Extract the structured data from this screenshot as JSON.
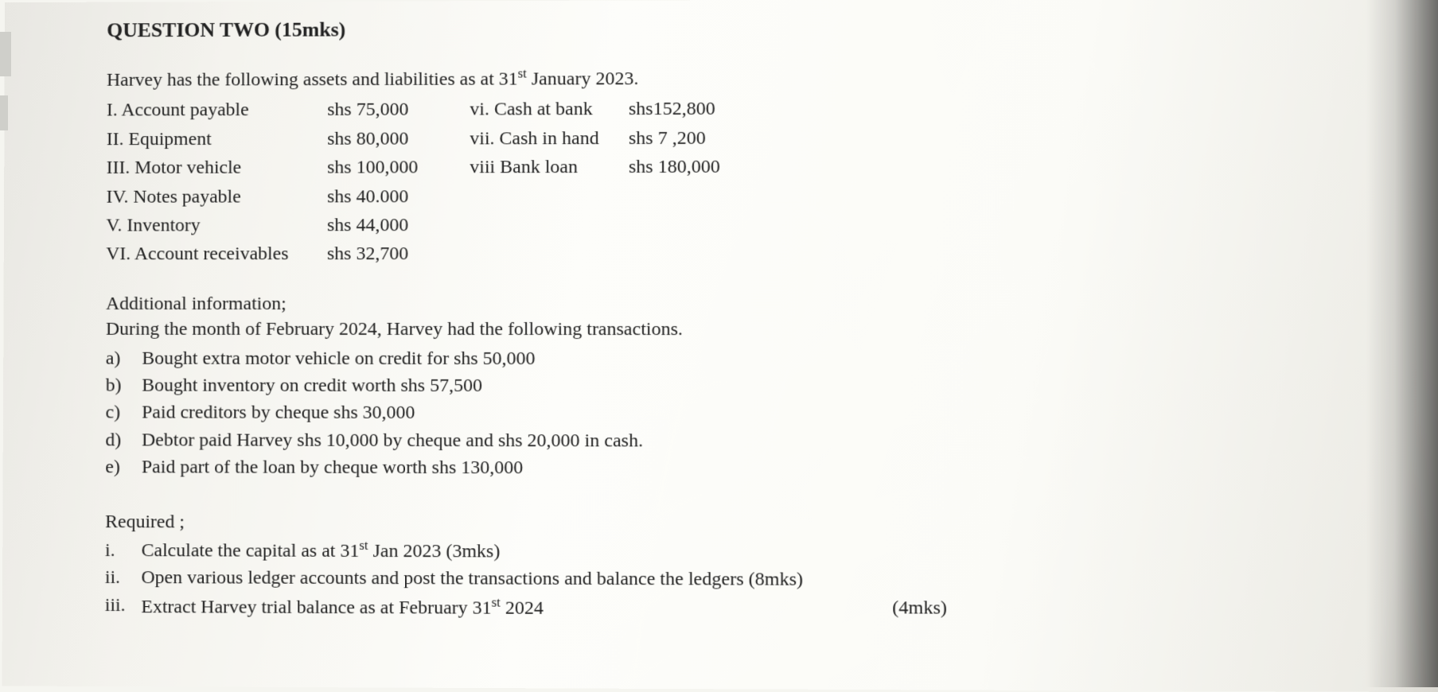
{
  "heading": "QUESTION TWO (15mks)",
  "intro_line": "Harvey  has the following assets and liabilities as at 31",
  "intro_super": "st",
  "intro_tail": " January  2023.",
  "rows": [
    {
      "l_label": "I. Account payable",
      "l_val": "shs 75,000",
      "r_label": "vi. Cash at bank",
      "r_val": "shs152,800"
    },
    {
      "l_label": "II. Equipment",
      "l_val": "shs 80,000",
      "r_label": "vii. Cash in hand",
      "r_val": "shs 7 ,200"
    },
    {
      "l_label": "III. Motor vehicle",
      "l_val": "shs 100,000",
      "r_label": "viii Bank loan",
      "r_val": "shs 180,000"
    },
    {
      "l_label": "IV. Notes payable",
      "l_val": "shs 40.000",
      "r_label": "",
      "r_val": ""
    },
    {
      "l_label": "V. Inventory",
      "l_val": "shs 44,000",
      "r_label": "",
      "r_val": ""
    },
    {
      "l_label": "VI. Account receivables",
      "l_val": "shs 32,700",
      "r_label": "",
      "r_val": ""
    }
  ],
  "additional_heading": "Additional information;",
  "additional_line": "During the month of February 2024, Harvey  had the following transactions.",
  "transactions": [
    {
      "marker": "a)",
      "text": "Bought extra motor vehicle on credit for  shs 50,000"
    },
    {
      "marker": "b)",
      "text": "Bought inventory on credit worth shs 57,500"
    },
    {
      "marker": "c)",
      "text": "Paid creditors by cheque  shs 30,000"
    },
    {
      "marker": "d)",
      "text": "Debtor paid Harvey shs 10,000 by cheque and  shs 20,000 in cash."
    },
    {
      "marker": "e)",
      "text": "Paid part of the loan by cheque worth shs 130,000"
    }
  ],
  "required_heading": "Required ;",
  "required": [
    {
      "marker": "i.",
      "pre": "Calculate the capital as at 31",
      "sup": "st",
      "post": " Jan 2023    (3mks)",
      "tail": ""
    },
    {
      "marker": "ii.",
      "pre": "Open various ledger accounts and post the transactions and balance the ledgers (8mks)",
      "sup": "",
      "post": "",
      "tail": ""
    },
    {
      "marker": "iii.",
      "pre": "Extract Harvey trial balance  as at February  31",
      "sup": "st",
      "post": " 2024",
      "tail": "(4mks)"
    }
  ]
}
